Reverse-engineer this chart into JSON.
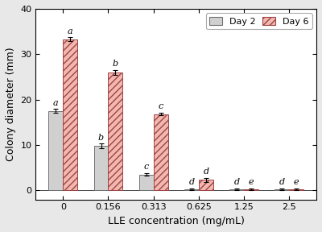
{
  "categories": [
    "0",
    "0.156",
    "0.313",
    "0.625",
    "1.25",
    "2.5"
  ],
  "day2_values": [
    17.5,
    9.8,
    3.5,
    0.3,
    0.3,
    0.3
  ],
  "day6_values": [
    33.3,
    26.0,
    16.8,
    2.3,
    0.3,
    0.3
  ],
  "day2_errors": [
    0.4,
    0.5,
    0.3,
    0.2,
    0.15,
    0.15
  ],
  "day6_errors": [
    0.4,
    0.5,
    0.3,
    0.4,
    0.15,
    0.15
  ],
  "day2_labels": [
    "a",
    "b",
    "c",
    "d",
    "d",
    "d"
  ],
  "day6_labels": [
    "a",
    "b",
    "c",
    "d",
    "e",
    "e"
  ],
  "bar_width": 0.32,
  "day2_color": "#d0d0d0",
  "day6_color_face": "#f2b8b0",
  "day6_edge_color": "#9e4444",
  "day2_edge_color": "#707070",
  "ylabel": "Colony diameter (mm)",
  "xlabel": "LLE concentration (mg/mL)",
  "ylim": [
    -2,
    40
  ],
  "yticks": [
    0,
    10,
    20,
    30,
    40
  ],
  "legend_day2": "Day 2",
  "legend_day6": "Day 6",
  "hatch_pattern": "////",
  "figsize": [
    4.0,
    2.88
  ],
  "dpi": 100,
  "outer_border_color": "#aaaaaa",
  "label_fontsize": 8.0,
  "tick_fontsize": 8.0,
  "axis_label_fontsize": 9.0
}
